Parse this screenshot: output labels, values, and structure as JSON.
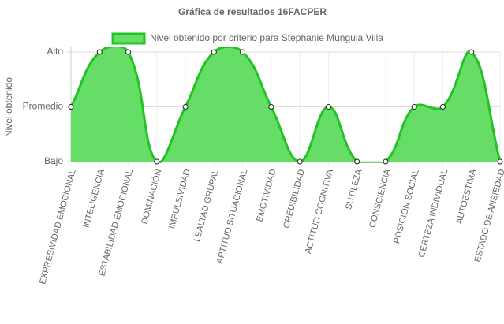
{
  "chart_data": {
    "type": "line",
    "title": "Gráfica de resultados 16FACPER",
    "y_label": "Nivel obtenido",
    "categories": [
      "EXPRESIVIDAD EMOCIONAL",
      "INTELIGENCIA",
      "ESTABILIDAD EMOCIONAL",
      "DOMINACIÓN",
      "IMPULSIVIDAD",
      "LEALTAD GRUPAL",
      "APTITUD SITUACIONAL",
      "EMOTIVIDAD",
      "CREDIBILIDAD",
      "ACTITUD COGNITIVA",
      "SUTILEZA",
      "CONSCIENCIA",
      "POSICIÓN SOCIAL",
      "CERTEZA INDIVIDUAL",
      "AUTOESTIMA",
      "ESTADO DE ANSIEDAD"
    ],
    "series": [
      {
        "name": "Nivel obtenido por criterio para Stephanie Munguia Villa",
        "color": "#22c322",
        "fill": "#66dd66",
        "values": [
          2,
          3,
          3,
          1,
          2,
          3,
          3,
          2,
          1,
          2,
          1,
          1,
          2,
          2,
          3,
          1
        ]
      }
    ],
    "ylim": [
      1,
      3
    ],
    "yticks": [
      {
        "value": 1,
        "label": "Bajo"
      },
      {
        "value": 2,
        "label": "Promedio"
      },
      {
        "value": 3,
        "label": "Alto"
      }
    ],
    "grid": true
  }
}
